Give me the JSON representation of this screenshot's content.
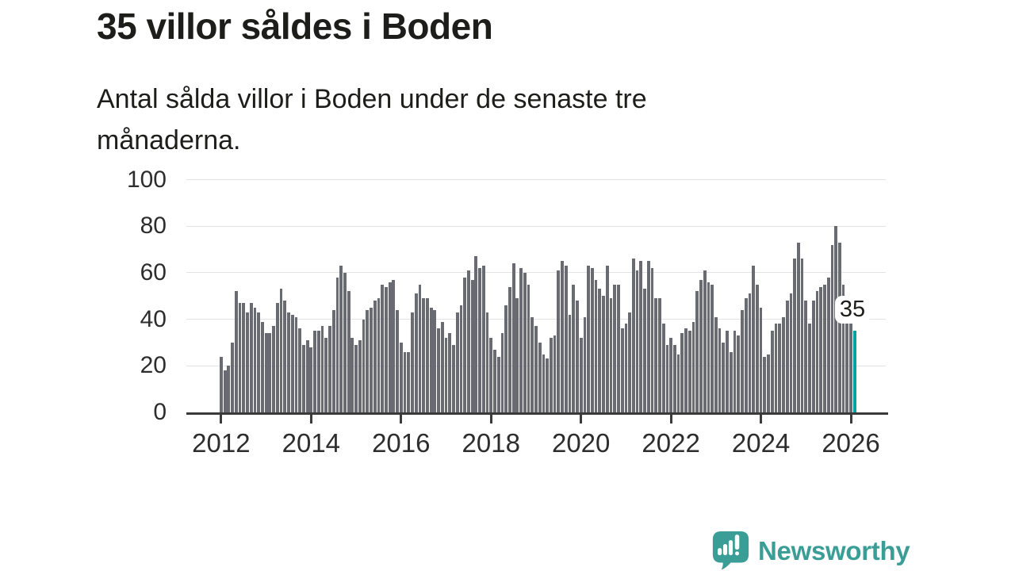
{
  "title": "35 villor såldes i Boden",
  "subtitle": {
    "line1": "Antal sålda villor i Boden under de senaste tre",
    "line2": "månaderna."
  },
  "annotation": {
    "label": "35"
  },
  "brand": {
    "name": "Newsworthy"
  },
  "colors": {
    "bar": "#6a6a72",
    "highlight": "#00a2a0",
    "grid": "#e3e3e3",
    "axis": "#3b3b3b",
    "tick_label": "#2d2d2d",
    "text": "#1d1d1b",
    "brand_teal": "#3b9e96",
    "background": "#ffffff"
  },
  "chart_data": {
    "type": "bar",
    "title": "35 villor såldes i Boden",
    "subtitle": "Antal sålda villor i Boden under de senaste tre månaderna.",
    "frequency": "monthly",
    "x_start": "2012-01",
    "x_end": "2026",
    "xlabel": "",
    "ylabel": "",
    "ylim": [
      0,
      100
    ],
    "y_ticks": [
      0,
      20,
      40,
      60,
      80,
      100
    ],
    "x_tick_years": [
      "2012",
      "2014",
      "2016",
      "2018",
      "2020",
      "2022",
      "2024",
      "2026"
    ],
    "grid": "horizontal",
    "legend": "none",
    "highlight_last_value": 35,
    "values": [
      24,
      18,
      20,
      30,
      52,
      47,
      47,
      43,
      47,
      45,
      43,
      39,
      34,
      34,
      37,
      47,
      53,
      48,
      43,
      42,
      41,
      36,
      29,
      31,
      28,
      35,
      35,
      37,
      32,
      37,
      44,
      58,
      63,
      60,
      52,
      32,
      29,
      31,
      40,
      44,
      45,
      48,
      49,
      55,
      54,
      56,
      57,
      44,
      30,
      26,
      26,
      43,
      51,
      55,
      49,
      49,
      45,
      44,
      36,
      39,
      32,
      34,
      29,
      43,
      46,
      58,
      61,
      57,
      67,
      62,
      63,
      43,
      32,
      27,
      24,
      34,
      46,
      54,
      64,
      49,
      62,
      60,
      55,
      41,
      37,
      30,
      25,
      23,
      32,
      33,
      61,
      65,
      63,
      42,
      55,
      48,
      32,
      41,
      63,
      62,
      57,
      53,
      50,
      63,
      49,
      55,
      55,
      36,
      38,
      43,
      66,
      61,
      65,
      53,
      65,
      62,
      49,
      49,
      38,
      29,
      32,
      29,
      25,
      34,
      36,
      35,
      39,
      52,
      57,
      61,
      56,
      55,
      41,
      36,
      30,
      35,
      26,
      35,
      33,
      44,
      49,
      51,
      63,
      55,
      45,
      24,
      25,
      35,
      38,
      38,
      41,
      48,
      51,
      66,
      73,
      66,
      48,
      38,
      48,
      52,
      54,
      55,
      58,
      72,
      80,
      73,
      55,
      46,
      41,
      35
    ]
  }
}
